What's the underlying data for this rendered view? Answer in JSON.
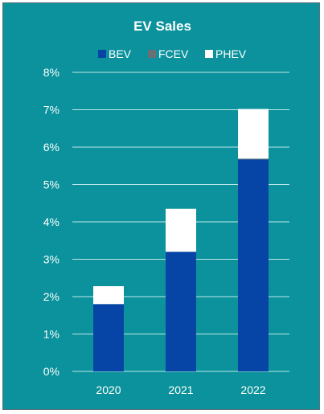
{
  "chart_data": {
    "type": "bar",
    "stacked": true,
    "title": "EV Sales",
    "categories": [
      "2020",
      "2021",
      "2022"
    ],
    "series": [
      {
        "name": "BEV",
        "values": [
          1.8,
          3.2,
          5.67
        ],
        "color": "#0645a5"
      },
      {
        "name": "FCEV",
        "values": [
          0,
          0,
          0.02
        ],
        "color": "#6a6f78"
      },
      {
        "name": "PHEV",
        "values": [
          0.48,
          1.15,
          1.33
        ],
        "color": "#ffffff"
      }
    ],
    "ylim": [
      0,
      8
    ],
    "yticks": [
      "0%",
      "1%",
      "2%",
      "3%",
      "4%",
      "5%",
      "6%",
      "7%",
      "8%"
    ],
    "xlabel": "",
    "ylabel": "",
    "grid": true,
    "legend": "top-center"
  },
  "colors": {
    "panel_background": "#0b929c",
    "border": "#5b6f75",
    "gridline": "#bfe6e8",
    "text": "#ffffff"
  }
}
